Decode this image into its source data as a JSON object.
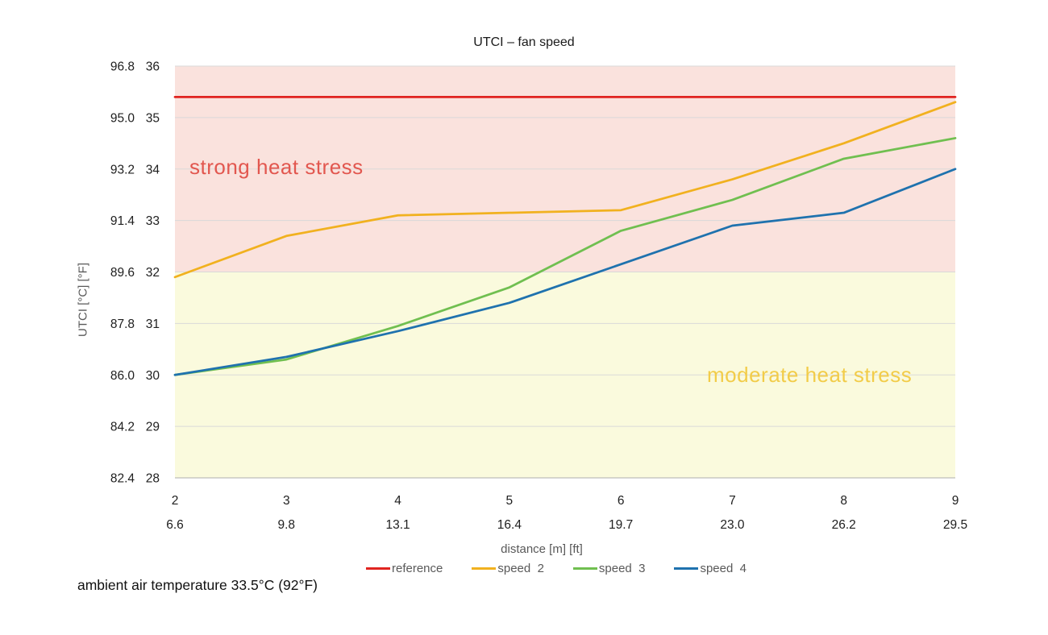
{
  "chart_data": {
    "type": "line",
    "title": "UTCI – fan speed",
    "xlabel": "distance [m] [ft]",
    "ylabel": "UTCI [°C] [°F]",
    "ylim": [
      28,
      36
    ],
    "xlim": [
      2,
      9
    ],
    "grid": "horizontal",
    "legend_position": "bottom",
    "y_ticks": [
      {
        "value": 36,
        "label_f": "96.8",
        "label_c": "36"
      },
      {
        "value": 35,
        "label_f": "95.0",
        "label_c": "35"
      },
      {
        "value": 34,
        "label_f": "93.2",
        "label_c": "34"
      },
      {
        "value": 33,
        "label_f": "91.4",
        "label_c": "33"
      },
      {
        "value": 32,
        "label_f": "89.6",
        "label_c": "32"
      },
      {
        "value": 31,
        "label_f": "87.8",
        "label_c": "31"
      },
      {
        "value": 30,
        "label_f": "86.0",
        "label_c": "30"
      },
      {
        "value": 29,
        "label_f": "84.2",
        "label_c": "29"
      },
      {
        "value": 28,
        "label_f": "82.4",
        "label_c": "28"
      }
    ],
    "x_ticks": [
      {
        "value": 2,
        "label_m": "2",
        "label_ft": "6.6"
      },
      {
        "value": 3,
        "label_m": "3",
        "label_ft": "9.8"
      },
      {
        "value": 4,
        "label_m": "4",
        "label_ft": "13.1"
      },
      {
        "value": 5,
        "label_m": "5",
        "label_ft": "16.4"
      },
      {
        "value": 6,
        "label_m": "6",
        "label_ft": "19.7"
      },
      {
        "value": 7,
        "label_m": "7",
        "label_ft": "23.0"
      },
      {
        "value": 8,
        "label_m": "8",
        "label_ft": "26.2"
      },
      {
        "value": 9,
        "label_m": "9",
        "label_ft": "29.5"
      }
    ],
    "x": [
      2,
      3,
      4,
      5,
      6,
      7,
      8,
      9
    ],
    "series": [
      {
        "name": "reference",
        "color": "#e02420",
        "values": [
          35.4,
          35.4,
          35.4,
          35.4,
          35.4,
          35.4,
          35.4,
          35.4
        ]
      },
      {
        "name": "speed  2",
        "color": "#f1b11f",
        "values": [
          31.9,
          32.7,
          33.1,
          33.15,
          33.2,
          33.8,
          34.5,
          35.3
        ]
      },
      {
        "name": "speed  3",
        "color": "#70bf50",
        "values": [
          30.0,
          30.3,
          30.95,
          31.7,
          32.8,
          33.4,
          34.2,
          34.6
        ]
      },
      {
        "name": "speed  4",
        "color": "#1f72ae",
        "values": [
          30.0,
          30.35,
          30.85,
          31.4,
          32.15,
          32.9,
          33.15,
          34.0
        ]
      }
    ],
    "zones": [
      {
        "label": "strong heat stress",
        "from": 32,
        "to": 36,
        "bg": "#fae2dd",
        "label_color": "#e2574f"
      },
      {
        "label": "moderate heat stress",
        "from": 28,
        "to": 32,
        "bg": "#fafadd",
        "label_color": "#f2cc49"
      }
    ],
    "footnote": "ambient air temperature 33.5°C (92°F)",
    "colors": {
      "gridline": "#d9d9d9",
      "axis_line": "#adadad",
      "tick_text": "#202020",
      "axis_title_text": "#595959",
      "legend_text": "#595959"
    }
  }
}
